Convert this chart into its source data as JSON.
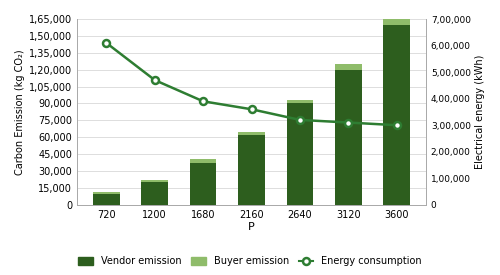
{
  "categories": [
    "720",
    "1200",
    "1680",
    "2160",
    "2640",
    "3120",
    "3600"
  ],
  "vendor_emission": [
    10000,
    20000,
    37000,
    62000,
    90000,
    120000,
    160000
  ],
  "buyer_emission": [
    1500,
    2000,
    3500,
    3000,
    3000,
    5000,
    5000
  ],
  "energy_consumption": [
    610000,
    470000,
    390000,
    360000,
    320000,
    310000,
    300000
  ],
  "xlabel": "P",
  "ylabel_left": "Carbon Emission (kg CO₂)",
  "ylabel_right": "Electrical energy (kWh)",
  "ylim_left": [
    0,
    165000
  ],
  "ylim_right": [
    0,
    700000
  ],
  "yticks_left": [
    0,
    15000,
    30000,
    45000,
    60000,
    75000,
    90000,
    105000,
    120000,
    135000,
    150000,
    165000
  ],
  "yticks_right": [
    0,
    100000,
    200000,
    300000,
    400000,
    500000,
    600000,
    700000
  ],
  "ytick_labels_left": [
    "0",
    "15,000",
    "30,000",
    "45,000",
    "60,000",
    "75,000",
    "90,000",
    "1,05,000",
    "1,20,000",
    "1,35,000",
    "1,50,000",
    "1,65,000"
  ],
  "ytick_labels_right": [
    "0",
    "1,00,000",
    "2,00,000",
    "3,00,000",
    "4,00,000",
    "5,00,000",
    "6,00,000",
    "7,00,000"
  ],
  "vendor_color": "#2d5e1e",
  "buyer_color": "#8fbc6a",
  "line_color": "#2e7d32",
  "legend_vendor": "Vendor emission",
  "legend_buyer": "Buyer emission",
  "legend_energy": "Energy consumption",
  "bar_width": 0.55,
  "grid_color": "#d0d0d0",
  "spine_color": "#aaaaaa"
}
